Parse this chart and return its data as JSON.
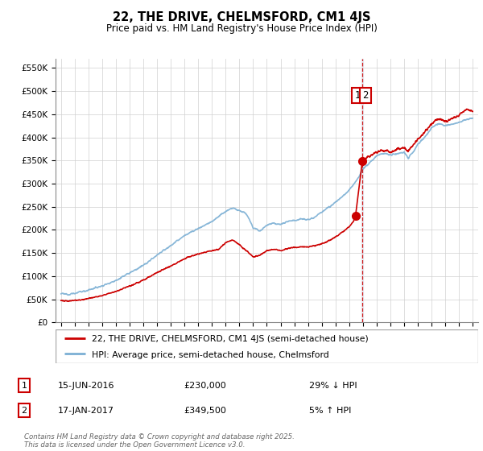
{
  "title": "22, THE DRIVE, CHELMSFORD, CM1 4JS",
  "subtitle": "Price paid vs. HM Land Registry's House Price Index (HPI)",
  "legend_line1": "22, THE DRIVE, CHELMSFORD, CM1 4JS (semi-detached house)",
  "legend_line2": "HPI: Average price, semi-detached house, Chelmsford",
  "annotation1_date": "15-JUN-2016",
  "annotation1_price": "£230,000",
  "annotation1_note": "29% ↓ HPI",
  "annotation2_date": "17-JAN-2017",
  "annotation2_price": "£349,500",
  "annotation2_note": "5% ↑ HPI",
  "footer": "Contains HM Land Registry data © Crown copyright and database right 2025.\nThis data is licensed under the Open Government Licence v3.0.",
  "vline_x": 2016.96,
  "marker1_x": 2016.46,
  "marker1_y": 230000,
  "marker2_x": 2016.96,
  "marker2_y": 349500,
  "red_color": "#cc0000",
  "blue_color": "#7bafd4",
  "vline_color": "#cc0000",
  "ylim": [
    0,
    570000
  ],
  "xlim_start": 1994.6,
  "xlim_end": 2025.4
}
